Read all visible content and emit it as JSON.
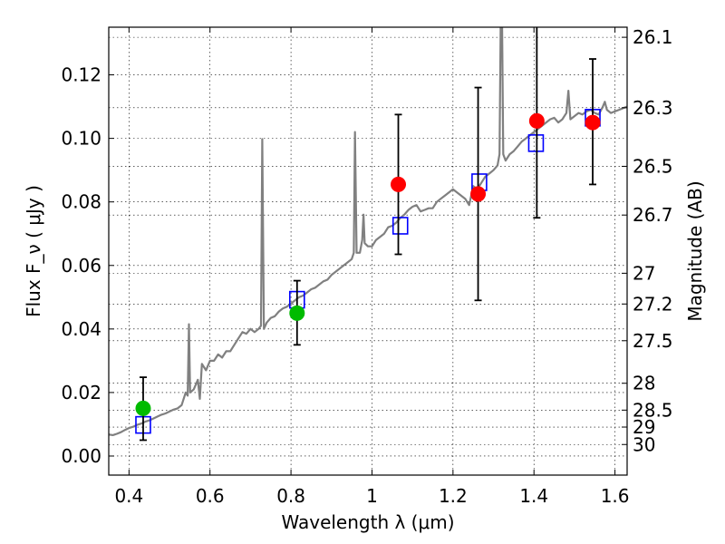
{
  "chart_data": {
    "type": "scatter",
    "title": "",
    "xlabel": "Wavelength  λ (μm)",
    "ylabel": "Flux  F_ν ( μJy )",
    "ylabel_right": "Magnitude (AB)",
    "xlim": [
      0.35,
      1.63
    ],
    "ylim": [
      -0.006,
      0.135
    ],
    "grid": true,
    "x_ticks": [
      {
        "value": 0.4,
        "label": "0.4"
      },
      {
        "value": 0.6,
        "label": "0.6"
      },
      {
        "value": 0.8,
        "label": "0.8"
      },
      {
        "value": 1.0,
        "label": "1"
      },
      {
        "value": 1.2,
        "label": "1.2"
      },
      {
        "value": 1.4,
        "label": "1.4"
      },
      {
        "value": 1.6,
        "label": "1.6"
      }
    ],
    "y_ticks": [
      {
        "value": 0.0,
        "label": "0.00"
      },
      {
        "value": 0.02,
        "label": "0.02"
      },
      {
        "value": 0.04,
        "label": "0.04"
      },
      {
        "value": 0.06,
        "label": "0.06"
      },
      {
        "value": 0.08,
        "label": "0.08"
      },
      {
        "value": 0.1,
        "label": "0.10"
      },
      {
        "value": 0.12,
        "label": "0.12"
      }
    ],
    "right_ticks": [
      {
        "mag": 26.1,
        "label": "26.1"
      },
      {
        "mag": 26.3,
        "label": "26.3"
      },
      {
        "mag": 26.5,
        "label": "26.5"
      },
      {
        "mag": 26.7,
        "label": "26.7"
      },
      {
        "mag": 27.0,
        "label": "27"
      },
      {
        "mag": 27.2,
        "label": "27.2"
      },
      {
        "mag": 27.5,
        "label": "27.5"
      },
      {
        "mag": 28.0,
        "label": "28"
      },
      {
        "mag": 28.5,
        "label": "28.5"
      },
      {
        "mag": 29.0,
        "label": "29"
      },
      {
        "mag": 30.0,
        "label": "30"
      }
    ],
    "series": [
      {
        "kind": "spectrum",
        "color": "#808080",
        "points": [
          [
            0.35,
            0.0068
          ],
          [
            0.36,
            0.0066
          ],
          [
            0.37,
            0.007
          ],
          [
            0.38,
            0.0075
          ],
          [
            0.39,
            0.0082
          ],
          [
            0.4,
            0.0088
          ],
          [
            0.41,
            0.0092
          ],
          [
            0.42,
            0.0098
          ],
          [
            0.43,
            0.0102
          ],
          [
            0.44,
            0.0108
          ],
          [
            0.45,
            0.0112
          ],
          [
            0.46,
            0.0118
          ],
          [
            0.47,
            0.0124
          ],
          [
            0.48,
            0.013
          ],
          [
            0.49,
            0.0134
          ],
          [
            0.5,
            0.014
          ],
          [
            0.51,
            0.0146
          ],
          [
            0.52,
            0.015
          ],
          [
            0.53,
            0.016
          ],
          [
            0.54,
            0.02
          ],
          [
            0.545,
            0.019
          ],
          [
            0.548,
            0.0415
          ],
          [
            0.551,
            0.02
          ],
          [
            0.56,
            0.021
          ],
          [
            0.57,
            0.024
          ],
          [
            0.575,
            0.018
          ],
          [
            0.58,
            0.029
          ],
          [
            0.59,
            0.027
          ],
          [
            0.6,
            0.03
          ],
          [
            0.61,
            0.03
          ],
          [
            0.62,
            0.032
          ],
          [
            0.63,
            0.031
          ],
          [
            0.64,
            0.033
          ],
          [
            0.65,
            0.033
          ],
          [
            0.66,
            0.035
          ],
          [
            0.67,
            0.037
          ],
          [
            0.68,
            0.039
          ],
          [
            0.69,
            0.0385
          ],
          [
            0.7,
            0.04
          ],
          [
            0.71,
            0.039
          ],
          [
            0.72,
            0.04
          ],
          [
            0.726,
            0.041
          ],
          [
            0.729,
            0.0998
          ],
          [
            0.733,
            0.04
          ],
          [
            0.74,
            0.042
          ],
          [
            0.75,
            0.0435
          ],
          [
            0.76,
            0.044
          ],
          [
            0.77,
            0.0455
          ],
          [
            0.78,
            0.0465
          ],
          [
            0.79,
            0.047
          ],
          [
            0.8,
            0.048
          ],
          [
            0.81,
            0.049
          ],
          [
            0.82,
            0.05
          ],
          [
            0.83,
            0.0505
          ],
          [
            0.84,
            0.0515
          ],
          [
            0.85,
            0.0525
          ],
          [
            0.86,
            0.053
          ],
          [
            0.87,
            0.054
          ],
          [
            0.88,
            0.055
          ],
          [
            0.89,
            0.0555
          ],
          [
            0.9,
            0.057
          ],
          [
            0.91,
            0.058
          ],
          [
            0.92,
            0.059
          ],
          [
            0.93,
            0.06
          ],
          [
            0.94,
            0.061
          ],
          [
            0.95,
            0.062
          ],
          [
            0.955,
            0.064
          ],
          [
            0.958,
            0.102
          ],
          [
            0.962,
            0.064
          ],
          [
            0.97,
            0.064
          ],
          [
            0.976,
            0.068
          ],
          [
            0.979,
            0.076
          ],
          [
            0.982,
            0.067
          ],
          [
            0.99,
            0.066
          ],
          [
            1.0,
            0.066
          ],
          [
            1.01,
            0.068
          ],
          [
            1.02,
            0.069
          ],
          [
            1.03,
            0.07
          ],
          [
            1.04,
            0.072
          ],
          [
            1.05,
            0.0725
          ],
          [
            1.06,
            0.0735
          ],
          [
            1.07,
            0.075
          ],
          [
            1.08,
            0.076
          ],
          [
            1.09,
            0.0775
          ],
          [
            1.1,
            0.0785
          ],
          [
            1.11,
            0.079
          ],
          [
            1.12,
            0.077
          ],
          [
            1.13,
            0.0775
          ],
          [
            1.14,
            0.078
          ],
          [
            1.15,
            0.078
          ],
          [
            1.16,
            0.08
          ],
          [
            1.17,
            0.081
          ],
          [
            1.18,
            0.082
          ],
          [
            1.19,
            0.083
          ],
          [
            1.2,
            0.084
          ],
          [
            1.21,
            0.083
          ],
          [
            1.22,
            0.082
          ],
          [
            1.23,
            0.081
          ],
          [
            1.24,
            0.079
          ],
          [
            1.25,
            0.085
          ],
          [
            1.26,
            0.084
          ],
          [
            1.27,
            0.086
          ],
          [
            1.28,
            0.088
          ],
          [
            1.29,
            0.089
          ],
          [
            1.3,
            0.09
          ],
          [
            1.31,
            0.0915
          ],
          [
            1.315,
            0.095
          ],
          [
            1.318,
            0.14
          ],
          [
            1.321,
            0.14
          ],
          [
            1.324,
            0.095
          ],
          [
            1.33,
            0.093
          ],
          [
            1.34,
            0.095
          ],
          [
            1.35,
            0.096
          ],
          [
            1.36,
            0.0975
          ],
          [
            1.37,
            0.099
          ],
          [
            1.38,
            0.1
          ],
          [
            1.39,
            0.101
          ],
          [
            1.4,
            0.102
          ],
          [
            1.41,
            0.103
          ],
          [
            1.42,
            0.104
          ],
          [
            1.43,
            0.105
          ],
          [
            1.44,
            0.106
          ],
          [
            1.45,
            0.1065
          ],
          [
            1.46,
            0.105
          ],
          [
            1.47,
            0.106
          ],
          [
            1.48,
            0.108
          ],
          [
            1.485,
            0.115
          ],
          [
            1.49,
            0.106
          ],
          [
            1.5,
            0.107
          ],
          [
            1.51,
            0.108
          ],
          [
            1.52,
            0.1075
          ],
          [
            1.53,
            0.1085
          ],
          [
            1.54,
            0.109
          ],
          [
            1.55,
            0.108
          ],
          [
            1.56,
            0.1075
          ],
          [
            1.57,
            0.11
          ],
          [
            1.575,
            0.1115
          ],
          [
            1.58,
            0.109
          ],
          [
            1.59,
            0.108
          ],
          [
            1.6,
            0.1085
          ],
          [
            1.61,
            0.109
          ],
          [
            1.62,
            0.1095
          ],
          [
            1.63,
            0.11
          ]
        ]
      },
      {
        "kind": "open-squares",
        "color": "#0000ff",
        "points": [
          [
            0.435,
            0.0098
          ],
          [
            0.815,
            0.0492
          ],
          [
            1.07,
            0.0725
          ],
          [
            1.265,
            0.0862
          ],
          [
            1.405,
            0.0985
          ],
          [
            1.545,
            0.1065
          ]
        ]
      },
      {
        "kind": "filled-circles",
        "color": "#00bb00",
        "points": [
          {
            "x": 0.435,
            "y": 0.015,
            "err_low": 0.005,
            "err_high": 0.0248
          },
          {
            "x": 0.815,
            "y": 0.045,
            "err_low": 0.035,
            "err_high": 0.0552
          }
        ]
      },
      {
        "kind": "filled-circles",
        "color": "#ff0000",
        "points": [
          {
            "x": 1.065,
            "y": 0.0855,
            "err_low": 0.0635,
            "err_high": 0.1075
          },
          {
            "x": 1.262,
            "y": 0.0825,
            "err_low": 0.049,
            "err_high": 0.116
          },
          {
            "x": 1.407,
            "y": 0.1055,
            "err_low": 0.075,
            "err_high": 0.136
          },
          {
            "x": 1.545,
            "y": 0.105,
            "err_low": 0.0855,
            "err_high": 0.125
          }
        ]
      }
    ]
  }
}
